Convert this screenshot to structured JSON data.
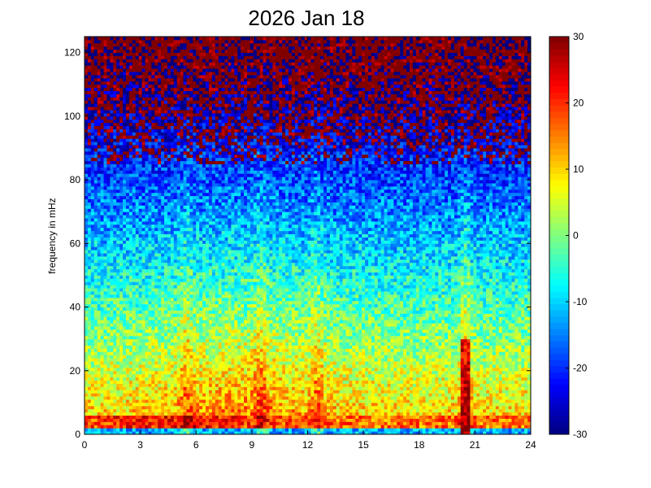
{
  "chart_data": {
    "type": "heatmap",
    "title": "2026 Jan 18",
    "xlabel": "",
    "ylabel": "frequency in mHz",
    "xlim": [
      0,
      24
    ],
    "ylim": [
      0,
      125
    ],
    "x_ticks": [
      0,
      3,
      6,
      9,
      12,
      15,
      18,
      21,
      24
    ],
    "y_ticks": [
      0,
      20,
      40,
      60,
      80,
      100,
      120
    ],
    "colorbar": {
      "colormap": "jet",
      "clim": [
        -30,
        30
      ],
      "ticks": [
        30,
        20,
        10,
        0,
        -10,
        -20,
        -30
      ]
    },
    "x_bins": 140,
    "y_bins": 125,
    "features": [
      {
        "kind": "low_freq_band",
        "freq_range": [
          2,
          6
        ],
        "level": 22
      },
      {
        "kind": "broadband_bursts",
        "hours": [
          5.5,
          9.5,
          12.5,
          20.5
        ],
        "level": 12
      },
      {
        "kind": "high_freq_noise",
        "freq_range": [
          85,
          125
        ],
        "level": 28
      },
      {
        "kind": "vertical_streak",
        "hour": 20.5,
        "freq_range": [
          0,
          30
        ],
        "level": 25
      }
    ]
  }
}
